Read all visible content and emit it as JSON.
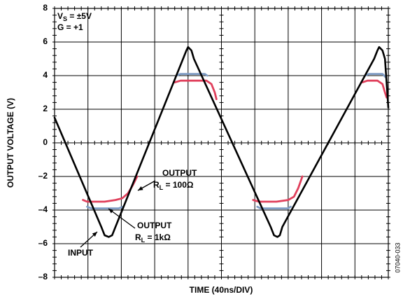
{
  "chart_data": {
    "type": "line",
    "xlabel": "TIME (40ns/DIV)",
    "ylabel": "OUTPUT VOLTAGE (V)",
    "xlim": [
      0,
      400
    ],
    "ylim": [
      -8,
      8
    ],
    "yticks": [
      {
        "value": -8,
        "label": "–8"
      },
      {
        "value": -6,
        "label": "–6"
      },
      {
        "value": -4,
        "label": "–4"
      },
      {
        "value": -2,
        "label": "–2"
      },
      0,
      2,
      4,
      6,
      8
    ],
    "grid": true,
    "conditions": [
      {
        "text": "V",
        "sub": "S",
        "after": " = ±5V"
      },
      {
        "text": "G = +1"
      }
    ],
    "figure_id": "07040-033",
    "series": [
      {
        "name": "INPUT",
        "color": "#000000",
        "x": [
          0,
          56,
          60,
          65,
          69,
          73,
          154,
          158,
          160,
          164,
          167,
          259,
          263,
          267,
          270,
          273,
          383,
          387,
          389,
          393,
          396,
          400
        ],
        "values": [
          1.5,
          -5.0,
          -5.5,
          -5.6,
          -5.5,
          -5.0,
          5.0,
          5.5,
          5.7,
          5.5,
          5.0,
          -5.0,
          -5.5,
          -5.6,
          -5.5,
          -5.0,
          5.0,
          5.5,
          5.7,
          5.5,
          5.0,
          2.1
        ]
      },
      {
        "name": "OUTPUT",
        "label": {
          "text": "R",
          "sub": "L",
          "after": " = 1kΩ"
        },
        "color": "#7f9cc4",
        "x": [
          39,
          44,
          77,
          82,
          null,
          146,
          151,
          180,
          183,
          null,
          243,
          247,
          280,
          283,
          null,
          372,
          377,
          393,
          397
        ],
        "values": [
          -3.8,
          -3.9,
          -3.9,
          -3.8,
          null,
          4.0,
          4.1,
          4.1,
          4.0,
          null,
          -3.8,
          -3.9,
          -3.9,
          -3.8,
          null,
          4.0,
          4.1,
          4.1,
          3.9
        ]
      },
      {
        "name": "OUTPUT",
        "label": {
          "text": "R",
          "sub": "L",
          "after": " = 100Ω"
        },
        "color": "#e0405c",
        "x": [
          34,
          39,
          60,
          73,
          81,
          88,
          94,
          99,
          null,
          144,
          151,
          182,
          188,
          192,
          194,
          null,
          238,
          245,
          266,
          280,
          287,
          292,
          297,
          null,
          369,
          375,
          387,
          393,
          396,
          398
        ],
        "values": [
          -3.4,
          -3.5,
          -3.5,
          -3.4,
          -3.3,
          -3.0,
          -2.5,
          -2.0,
          null,
          3.6,
          3.7,
          3.7,
          3.5,
          3.0,
          2.6,
          null,
          -3.4,
          -3.5,
          -3.5,
          -3.4,
          -3.2,
          -2.7,
          -2.0,
          null,
          3.6,
          3.7,
          3.7,
          3.5,
          3.0,
          2.7
        ]
      }
    ]
  }
}
